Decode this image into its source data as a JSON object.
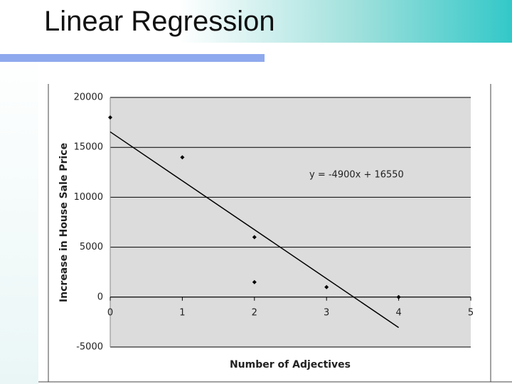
{
  "slide": {
    "title": "Linear Regression"
  },
  "chart_data": {
    "type": "scatter",
    "x_label": "Number of Adjectives",
    "y_label": "Increase in House Sale Price",
    "x": [
      0,
      1,
      2,
      2,
      3,
      4
    ],
    "values": [
      18000,
      14000,
      6000,
      1500,
      1000,
      0
    ],
    "color": "#000000",
    "trendline": {
      "slope": -4900,
      "intercept": 16550,
      "x": [
        0,
        4
      ],
      "label": "y = -4900x + 16550",
      "color": "#000000"
    },
    "xlim": [
      0,
      5
    ],
    "xticks": [
      0,
      1,
      2,
      3,
      4,
      5
    ],
    "ylim": [
      -5000,
      20000
    ],
    "yticks": [
      20000,
      15000,
      10000,
      5000,
      0,
      -5000
    ],
    "grid": true
  }
}
